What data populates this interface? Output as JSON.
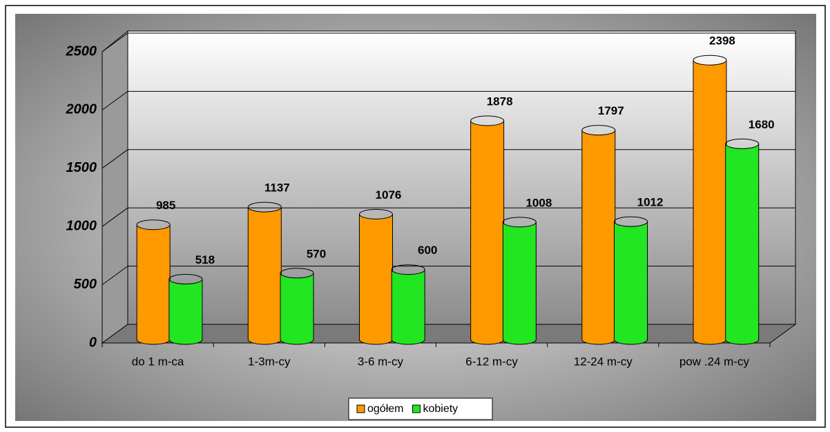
{
  "chart_data": {
    "type": "bar3d",
    "categories": [
      "do 1 m-ca",
      "1-3m-cy",
      "3-6 m-cy",
      "6-12 m-cy",
      "12-24 m-cy",
      "pow .24 m-cy"
    ],
    "series": [
      {
        "name": "ogółem",
        "color": "#ff9900",
        "values": [
          985,
          1137,
          1076,
          1878,
          1797,
          2398
        ]
      },
      {
        "name": "kobiety",
        "color": "#22e622",
        "values": [
          518,
          570,
          600,
          1008,
          1012,
          1680
        ]
      }
    ],
    "ylim": [
      0,
      2500
    ],
    "yticks": [
      0,
      500,
      1000,
      1500,
      2000,
      2500
    ],
    "grid": true,
    "legend": "bottom"
  }
}
